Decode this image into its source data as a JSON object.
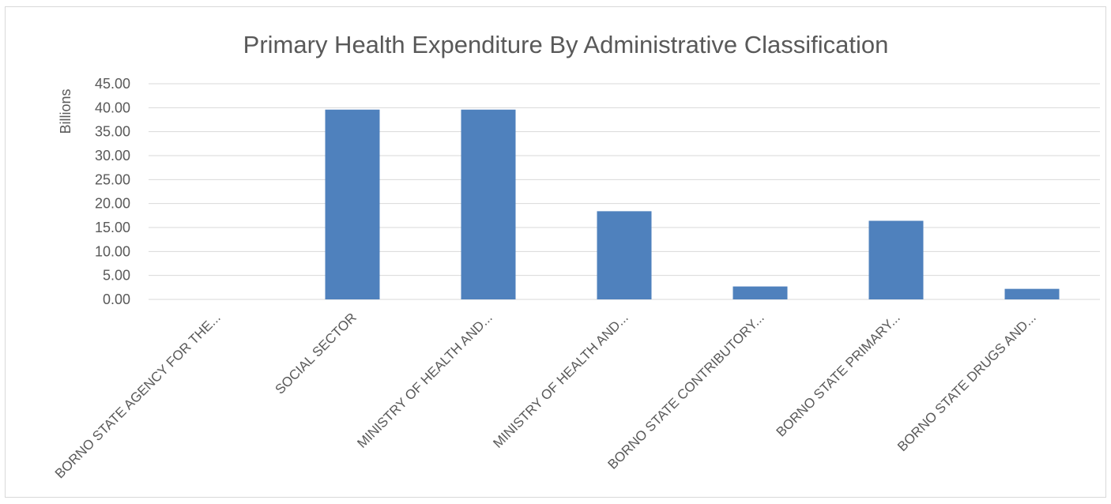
{
  "chart_data": {
    "type": "bar",
    "title": "Primary Health Expenditure By Administrative Classification",
    "ylabel": "Billions",
    "xlabel": "",
    "ylim": [
      0,
      45
    ],
    "yticks": [
      "0.00",
      "5.00",
      "10.00",
      "15.00",
      "20.00",
      "25.00",
      "30.00",
      "35.00",
      "40.00",
      "45.00"
    ],
    "categories": [
      "BORNO STATE AGENCY FOR THE...",
      "SOCIAL SECTOR",
      "MINISTRY OF HEALTH AND...",
      "MINISTRY OF HEALTH AND...",
      "BORNO STATE CONTRIBUTORY...",
      "BORNO STATE PRIMARY...",
      "BORNO STATE DRUGS AND..."
    ],
    "values": [
      0,
      39.6,
      39.6,
      18.4,
      2.7,
      16.4,
      2.2
    ],
    "grid": true,
    "bar_color": "#4f81bd",
    "grid_color": "#d9d9d9"
  }
}
